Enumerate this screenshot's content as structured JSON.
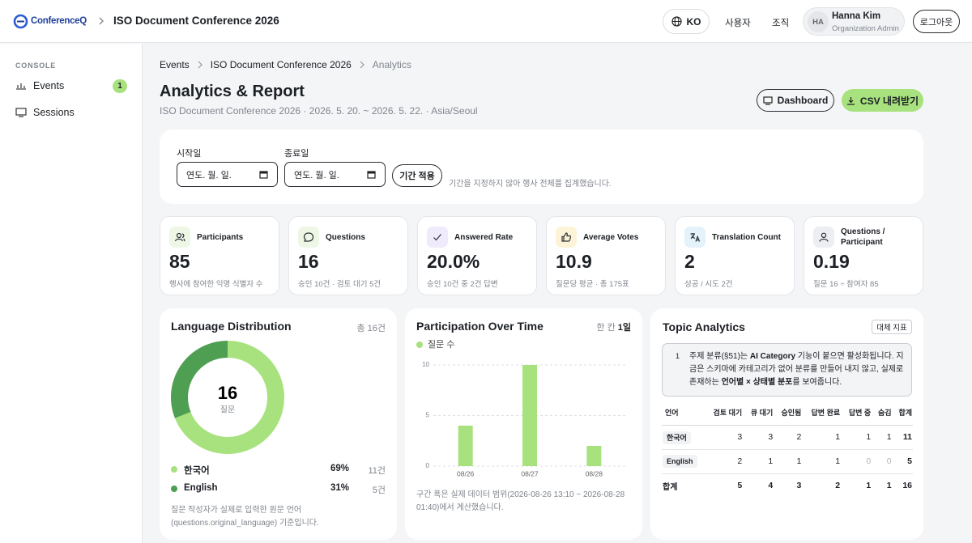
{
  "header": {
    "logo": "ConferenceQ",
    "event": "ISO Document Conference 2026",
    "lang": "KO",
    "nav": [
      "사용자",
      "조직"
    ],
    "user": {
      "initials": "HA",
      "name": "Hanna Kim",
      "role": "Organization Admin"
    },
    "logout": "로그아웃"
  },
  "sidebar": {
    "section": "CONSOLE",
    "items": [
      {
        "label": "Events",
        "badge": 1
      },
      {
        "label": "Sessions"
      }
    ]
  },
  "breadcrumb": [
    "Events",
    "ISO Document Conference 2026",
    "Analytics"
  ],
  "page": {
    "title": "Analytics & Report",
    "subtitle": "ISO Document Conference 2026 · 2026. 5. 20. ~ 2026. 5. 22. · Asia/Seoul",
    "buttons": [
      "Dashboard",
      "CSV 내려받기"
    ]
  },
  "filter": {
    "start_label": "시작일",
    "end_label": "종료일",
    "placeholder": "연도. 월. 일.",
    "apply": "기간 적용",
    "note": "기간을 지정하지 않아 행사 전체를 집계했습니다."
  },
  "kpis": [
    {
      "label": "Participants",
      "value": "85",
      "note": "행사에 참여한 익명 식별자 수"
    },
    {
      "label": "Questions",
      "value": "16",
      "note": "승인 10건 · 검토 대기 5건"
    },
    {
      "label": "Answered Rate",
      "value": "20.0%",
      "note": "승인 10건 중 2건 답변"
    },
    {
      "label": "Average Votes",
      "value": "10.9",
      "note": "질문당 평균 · 총 175표"
    },
    {
      "label": "Translation Count",
      "value": "2",
      "note": "성공 / 시도 2건"
    },
    {
      "label": "Questions / Participant",
      "value": "0.19",
      "note": "질문 16 ÷ 참여자 85"
    }
  ],
  "language": {
    "title": "Language Distribution",
    "total": "총 16건",
    "center_value": 16,
    "center_label": "질문",
    "items": [
      {
        "name": "한국어",
        "color": "#a8e27e",
        "percent": 69,
        "percent_label": "69%",
        "count_label": "11건"
      },
      {
        "name": "English",
        "color": "#4e9f52",
        "percent": 31,
        "percent_label": "31%",
        "count_label": "5건"
      }
    ],
    "note": "질문 작성자가 실제로 입력한 원문 언어 (questions.original_language) 기준입니다."
  },
  "participation": {
    "title": "Participation Over Time",
    "unit_label": "한 칸",
    "unit_value": "1일",
    "chart_data": {
      "type": "bar",
      "categories": [
        "08/26",
        "08/27",
        "08/28"
      ],
      "series": [
        {
          "name": "질문 수",
          "color": "#a8e27e",
          "values": [
            4,
            10,
            2
          ]
        }
      ],
      "ylim": [
        0,
        10
      ],
      "yticks": [
        0,
        5,
        10
      ],
      "grid": true
    },
    "note": "구간 폭은 실제 데이터 범위(2026-08-26 13:10 ~ 2026-08-28 01:40)에서 계산했습니다."
  },
  "topic": {
    "title": "Topic Analytics",
    "badge": "대체 지표",
    "notice_number": "1",
    "notice": [
      "주제 분류(§51)는 ",
      "AI Category",
      " 기능이 붙으면 활성화됩니다. 지금은 스키마에 카테고리가 없어 분류를 만들어 내지 않고, 실제로 존재하는 ",
      "언어별 × 상태별 분포",
      "를 보여줍니다."
    ],
    "table": {
      "columns": [
        "언어",
        "검토 대기",
        "큐 대기",
        "승인됨",
        "답변 완료",
        "답변 중",
        "숨김",
        "합계"
      ],
      "rows": [
        [
          "한국어",
          3,
          3,
          2,
          1,
          1,
          1,
          11
        ],
        [
          "English",
          2,
          1,
          1,
          1,
          0,
          0,
          5
        ],
        [
          "합계",
          5,
          4,
          3,
          2,
          1,
          1,
          16
        ]
      ]
    }
  }
}
